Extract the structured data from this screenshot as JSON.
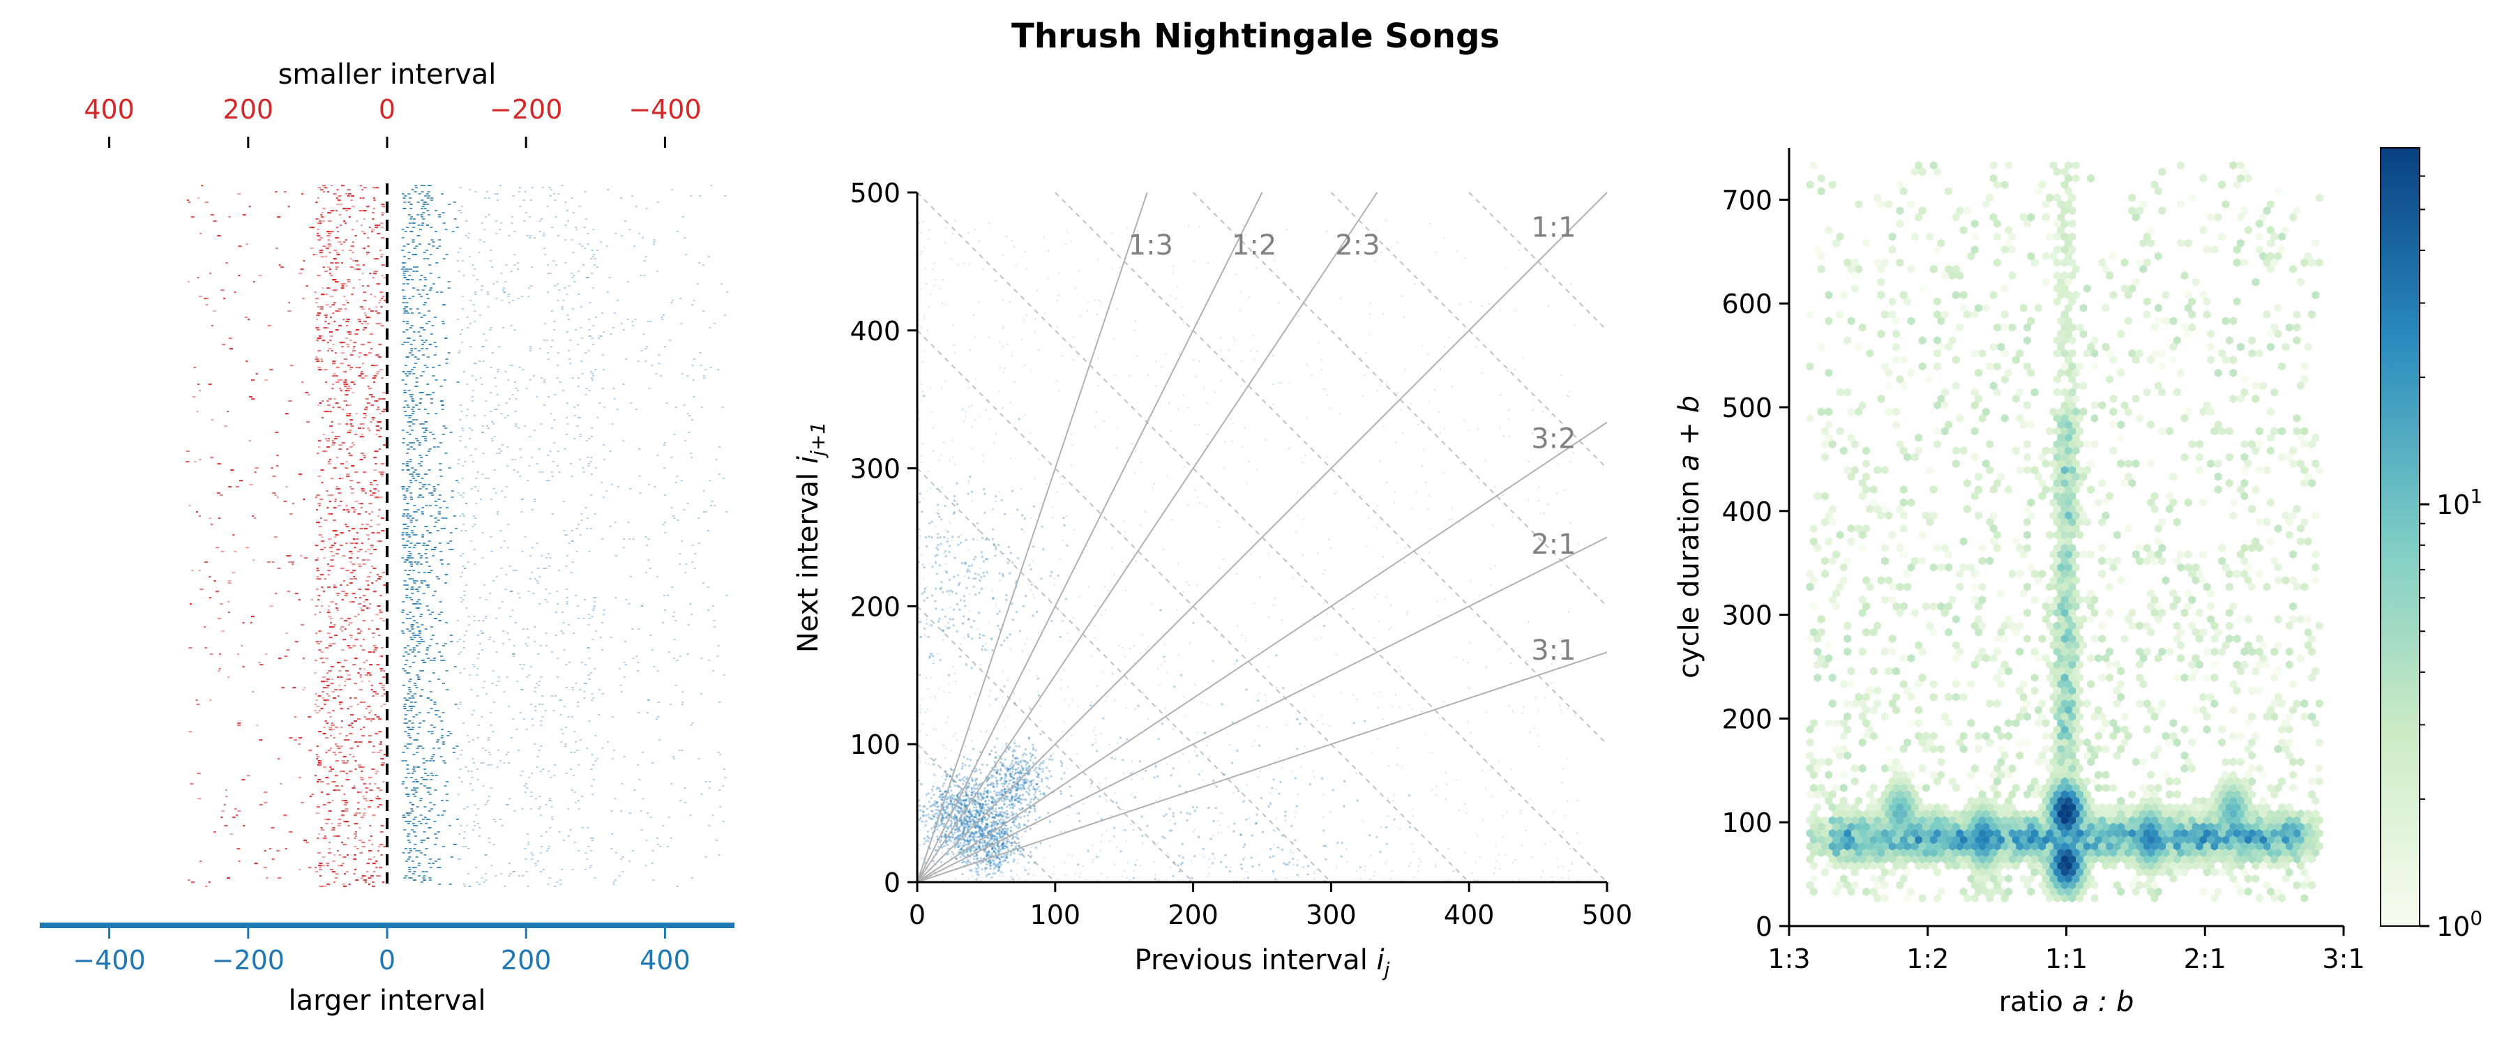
{
  "title": "Thrush Nightingale Songs",
  "colors": {
    "red": "#d62728",
    "blue": "#1f77b4",
    "gray": "#808080",
    "cmap": "GnBu"
  },
  "chart_data": [
    {
      "type": "scatter",
      "panel": "interval-raster",
      "top_xlabel": "smaller interval",
      "xlabel": "larger interval",
      "top_ticks": [
        400,
        200,
        0,
        -200,
        -400
      ],
      "top_tick_labels": [
        "400",
        "200",
        "0",
        "−200",
        "−400"
      ],
      "bottom_ticks": [
        -400,
        -200,
        0,
        200,
        400
      ],
      "bottom_tick_labels": [
        "−400",
        "−200",
        "0",
        "200",
        "400"
      ],
      "xlim": [
        -500,
        500
      ],
      "series": [
        {
          "color": "#d62728",
          "side": "negative",
          "dense_range": [
            -100,
            0
          ]
        },
        {
          "color": "#1f77b4",
          "side": "positive",
          "dense_range": [
            0,
            100
          ]
        }
      ],
      "reference_line_x": 0
    },
    {
      "type": "scatter",
      "panel": "return-map",
      "xlabel": "Previous interval",
      "xlabel_var": "i",
      "xlabel_sub": "j",
      "ylabel": "Next interval",
      "ylabel_var": "i",
      "ylabel_sub": "j+1",
      "xlim": [
        0,
        500
      ],
      "ylim": [
        0,
        500
      ],
      "xticks": [
        0,
        100,
        200,
        300,
        400,
        500
      ],
      "yticks": [
        0,
        100,
        200,
        300,
        400,
        500
      ],
      "ratio_lines": [
        {
          "label": "1:3",
          "slope": 3
        },
        {
          "label": "1:2",
          "slope": 2
        },
        {
          "label": "2:3",
          "slope": 1.5
        },
        {
          "label": "1:1",
          "slope": 1
        },
        {
          "label": "3:2",
          "slope": 0.6667
        },
        {
          "label": "2:1",
          "slope": 0.5
        },
        {
          "label": "3:1",
          "slope": 0.3333
        }
      ],
      "cycle_lines": [
        100,
        200,
        300,
        400,
        500,
        600,
        700,
        800,
        900
      ],
      "clusters": [
        {
          "x": 30,
          "y": 50,
          "spread": 14,
          "n": 700
        },
        {
          "x": 52,
          "y": 30,
          "spread": 12,
          "n": 600
        },
        {
          "x": 70,
          "y": 72,
          "spread": 14,
          "n": 500
        },
        {
          "x": 25,
          "y": 220,
          "spread": 35,
          "n": 300
        },
        {
          "x": 220,
          "y": 25,
          "spread": 60,
          "n": 300
        }
      ]
    },
    {
      "type": "heatmap",
      "panel": "cycle-ratio-hexbin",
      "xlabel": "ratio",
      "xlabel_math": "a : b",
      "ylabel": "cycle duration",
      "ylabel_math": "a + b",
      "xticks": [
        -2,
        -1,
        0,
        1,
        2
      ],
      "xtick_labels": [
        "1:3",
        "1:2",
        "1:1",
        "2:1",
        "3:1"
      ],
      "xlim": [
        -2,
        2
      ],
      "ylim": [
        0,
        750
      ],
      "yticks": [
        0,
        100,
        200,
        300,
        400,
        500,
        600,
        700
      ],
      "hot_spots": [
        {
          "x": 0,
          "y": 110,
          "level": 2.0
        },
        {
          "x": 0,
          "y": 60,
          "level": 1.9
        },
        {
          "x": -0.6,
          "y": 85,
          "level": 1.5
        },
        {
          "x": 0.6,
          "y": 85,
          "level": 1.5
        },
        {
          "x": -1.2,
          "y": 110,
          "level": 1.1
        },
        {
          "x": 1.2,
          "y": 110,
          "level": 1.1
        }
      ],
      "colorbar": {
        "scale": "log",
        "range": [
          1,
          70
        ],
        "tick_labels": [
          {
            "base": "10",
            "exp": "0",
            "value": 1
          },
          {
            "base": "10",
            "exp": "1",
            "value": 10
          }
        ],
        "minor_ticks": [
          2,
          3,
          4,
          5,
          6,
          7,
          8,
          9,
          20,
          30,
          40,
          50,
          60
        ]
      }
    }
  ]
}
